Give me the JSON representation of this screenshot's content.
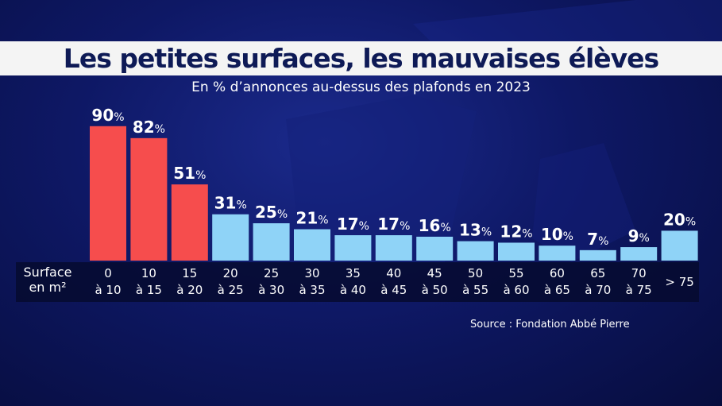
{
  "title": "Les petites surfaces, les mauvaises élèves",
  "subtitle": "En % d’annonces au-dessus des plafonds en 2023",
  "source": "Source : Fondation Abbé Pierre",
  "colors": {
    "highlight": "#f64d4d",
    "normal": "#8fd3f7",
    "axis_band": "#060b2f",
    "text": "#ffffff",
    "title_text": "#0e1a56"
  },
  "chart_data": {
    "type": "bar",
    "title": "Les petites surfaces, les mauvaises élèves",
    "subtitle": "En % d’annonces au-dessus des plafonds en 2023",
    "xlabel": "Surface en m²",
    "ylabel": "",
    "ylim": [
      0,
      100
    ],
    "unit": "%",
    "categories": [
      {
        "top": "0",
        "bottom": "à 10"
      },
      {
        "top": "10",
        "bottom": "à 15"
      },
      {
        "top": "15",
        "bottom": "à 20"
      },
      {
        "top": "20",
        "bottom": "à 25"
      },
      {
        "top": "25",
        "bottom": "à 30"
      },
      {
        "top": "30",
        "bottom": "à 35"
      },
      {
        "top": "35",
        "bottom": "à 40"
      },
      {
        "top": "40",
        "bottom": "à 45"
      },
      {
        "top": "45",
        "bottom": "à 50"
      },
      {
        "top": "50",
        "bottom": "à 55"
      },
      {
        "top": "55",
        "bottom": "à 60"
      },
      {
        "top": "60",
        "bottom": "à 65"
      },
      {
        "top": "65",
        "bottom": "à 70"
      },
      {
        "top": "70",
        "bottom": "à 75"
      },
      {
        "top": "> 75",
        "bottom": ""
      }
    ],
    "values": [
      90,
      82,
      51,
      31,
      25,
      21,
      17,
      17,
      16,
      13,
      12,
      10,
      7,
      9,
      20
    ],
    "highlighted": [
      true,
      true,
      true,
      false,
      false,
      false,
      false,
      false,
      false,
      false,
      false,
      false,
      false,
      false,
      false
    ]
  },
  "axis_label": {
    "line1": "Surface",
    "line2": "en m²"
  }
}
